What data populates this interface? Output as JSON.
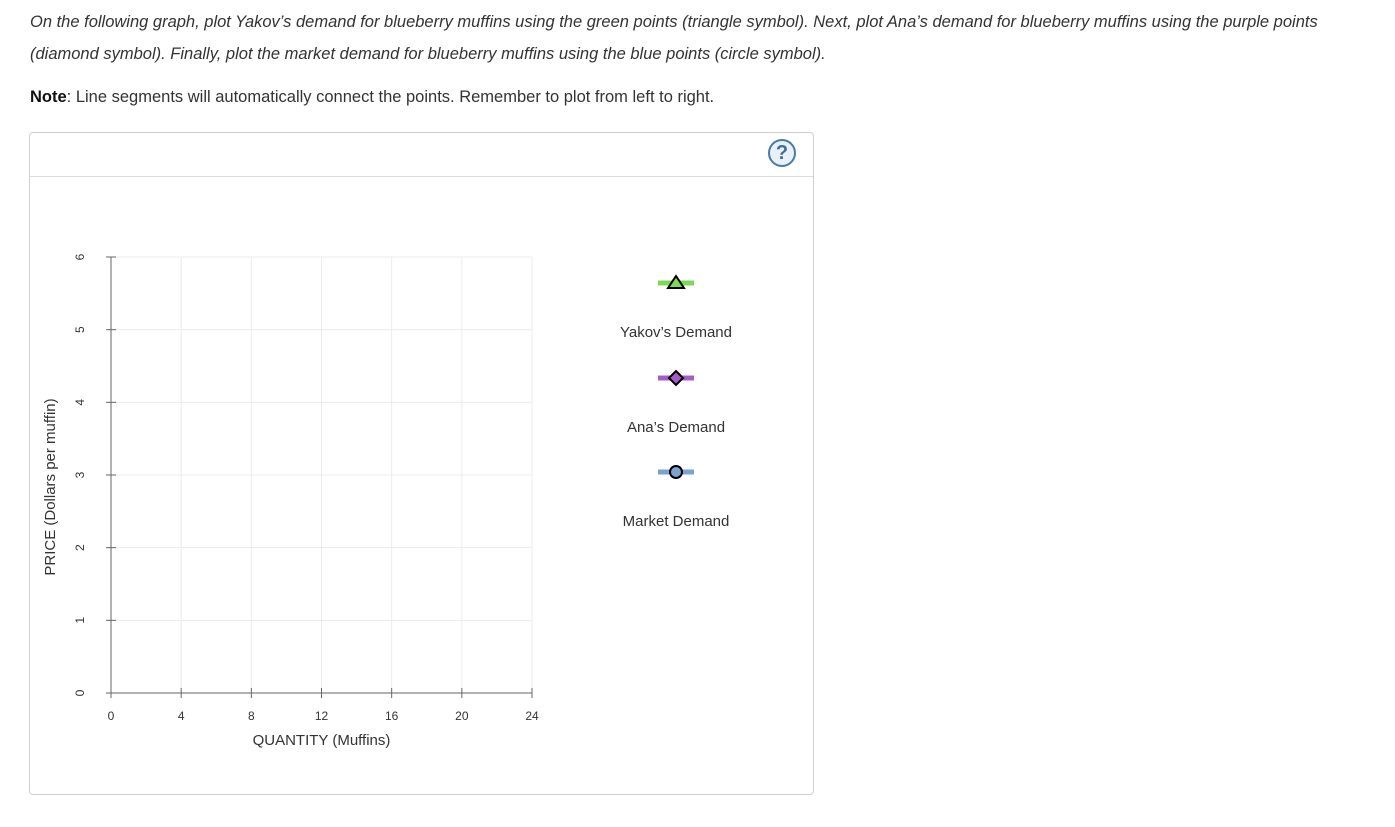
{
  "instructions": {
    "main_text": "On the following graph, plot Yakov’s demand for blueberry muffins using the green points (triangle symbol). Next, plot Ana’s demand for blueberry muffins using the purple points (diamond symbol). Finally, plot the market demand for blueberry muffins using the blue points (circle symbol).",
    "note_label": "Note",
    "note_text": ": Line segments will automatically connect the points. Remember to plot from left to right."
  },
  "help": {
    "icon": "question-mark-icon",
    "label": "?"
  },
  "chart_data": {
    "type": "line",
    "xlabel": "QUANTITY (Muffins)",
    "ylabel": "PRICE (Dollars per muffin)",
    "xlim": [
      0,
      24
    ],
    "ylim": [
      0,
      6
    ],
    "x_ticks": [
      "0",
      "4",
      "8",
      "12",
      "16",
      "20",
      "24"
    ],
    "y_ticks": [
      "0",
      "1",
      "2",
      "3",
      "4",
      "5",
      "6"
    ],
    "grid": true,
    "series": [
      {
        "name": "Yakov’s Demand",
        "symbol": "triangle",
        "color": "#7ed957",
        "values": []
      },
      {
        "name": "Ana’s Demand",
        "symbol": "diamond",
        "color": "#a45cc6",
        "values": []
      },
      {
        "name": "Market Demand",
        "symbol": "circle",
        "color": "#7aa3d0",
        "values": []
      }
    ]
  }
}
